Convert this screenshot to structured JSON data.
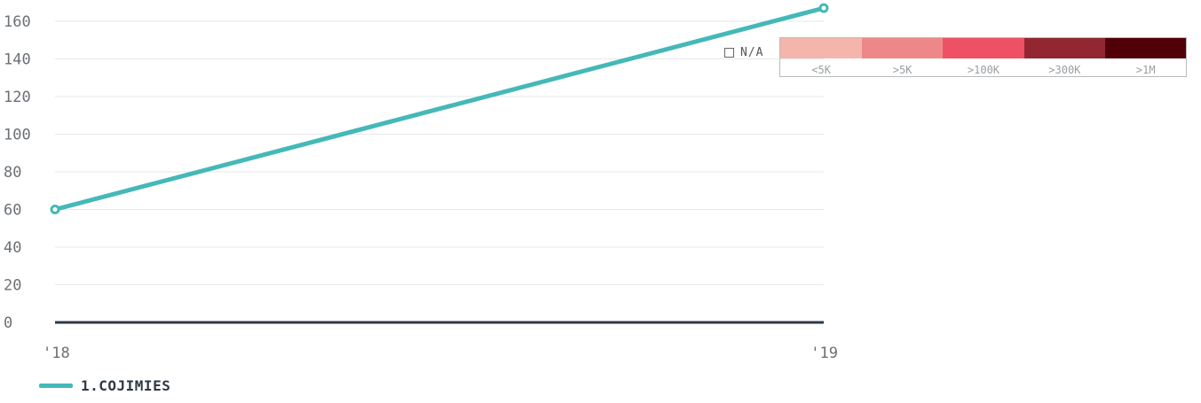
{
  "chart_data": {
    "type": "line",
    "x": [
      "'18",
      "'19"
    ],
    "series": [
      {
        "name": "1.COJIMIES",
        "values": [
          60,
          167
        ],
        "color": "#45b8b8"
      }
    ],
    "yticks": [
      "0",
      "20",
      "40",
      "60",
      "80",
      "100",
      "120",
      "140",
      "160"
    ],
    "ylim": [
      0,
      160
    ],
    "grid": true,
    "legend": "bottom-left",
    "xlabel": "",
    "ylabel": "",
    "title": ""
  },
  "color_scale": {
    "na_label": "N/A",
    "bins": [
      {
        "label": "<5K",
        "color": "#f4b6ac"
      },
      {
        "label": ">5K",
        "color": "#ee8888"
      },
      {
        "label": ">100K",
        "color": "#ed5163"
      },
      {
        "label": ">300K",
        "color": "#922732"
      },
      {
        "label": ">1M",
        "color": "#510008"
      }
    ]
  }
}
